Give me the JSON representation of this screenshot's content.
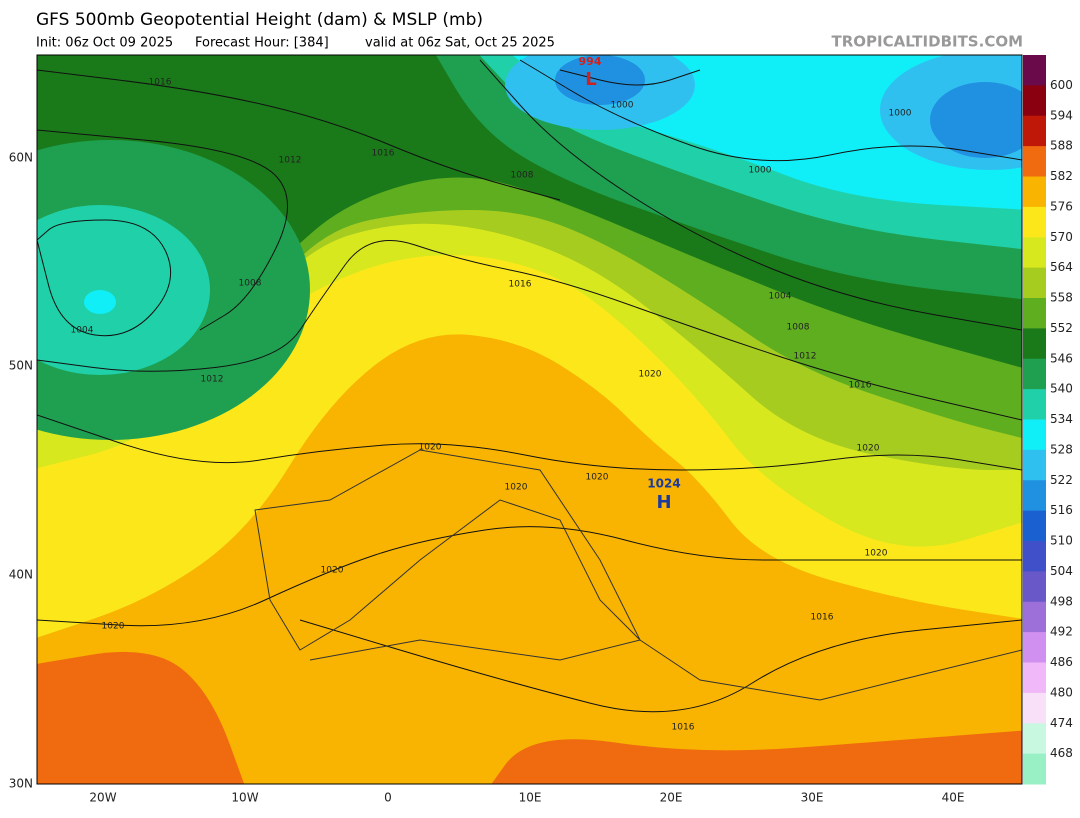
{
  "header": {
    "title": "GFS 500mb Geopotential Height (dam) & MSLP (mb)",
    "init": "Init: 06z Oct 09 2025",
    "forecast": "Forecast Hour: [384]",
    "valid": "valid at 06z Sat, Oct 25 2025",
    "source": "TROPICALTIDBITS.COM"
  },
  "map": {
    "lat_labels": [
      "60N",
      "50N",
      "40N",
      "30N"
    ],
    "lon_labels": [
      "20W",
      "10W",
      "0",
      "10E",
      "20E",
      "30E",
      "40E"
    ],
    "isobar_labels": [
      "1016",
      "1012",
      "1016",
      "1008",
      "1004",
      "1012",
      "1000",
      "1008",
      "1000",
      "1000",
      "1016",
      "1004",
      "1008",
      "1012",
      "1020",
      "1016",
      "1020",
      "1020",
      "1020",
      "1020",
      "1020",
      "1020",
      "1016",
      "1020",
      "1016"
    ],
    "low": {
      "value": "994",
      "symbol": "L"
    },
    "high": {
      "value": "1024",
      "symbol": "H"
    }
  },
  "colorbar": {
    "levels": [
      600,
      594,
      588,
      582,
      576,
      570,
      564,
      558,
      552,
      546,
      540,
      534,
      528,
      522,
      516,
      510,
      504,
      498,
      492,
      486,
      480,
      474,
      468
    ],
    "colors": [
      "#6a0a4a",
      "#8a0010",
      "#c01808",
      "#f06a10",
      "#f8b400",
      "#fce81a",
      "#d8e81e",
      "#a6cc20",
      "#5fae20",
      "#1a7a1a",
      "#1ea050",
      "#20d0a8",
      "#10eef8",
      "#30c0f0",
      "#2090e0",
      "#1a60d0",
      "#4050c8",
      "#6858c8",
      "#9c70d8",
      "#d090f0",
      "#f0b8f8",
      "#f8e0f8",
      "#c8f8e0",
      "#98f0c4"
    ]
  }
}
